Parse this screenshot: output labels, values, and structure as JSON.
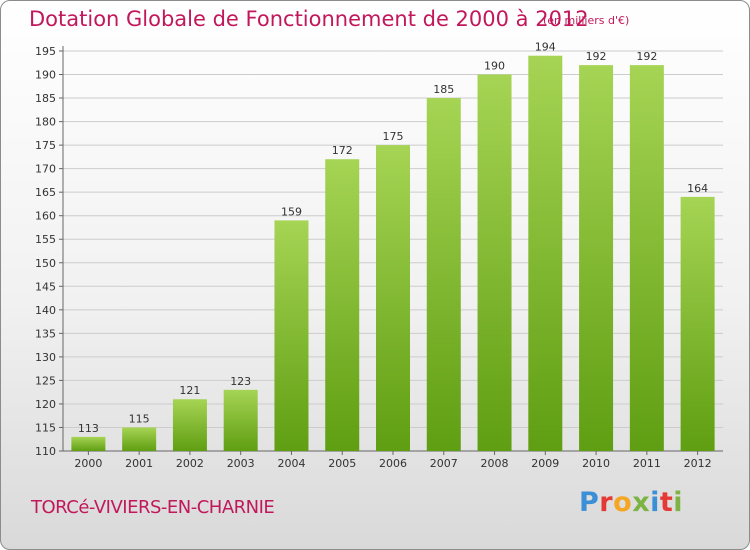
{
  "header": {
    "title": "Dotation Globale de Fonctionnement de 2000 à 2012",
    "unit": "(en milliers d'€)"
  },
  "footer": {
    "commune": "TORCé-VIVIERS-EN-CHARNIE",
    "brand_logo": "Proxiti"
  },
  "colors": {
    "title": "#c2185b",
    "bar_light": "#a6d454",
    "bar_dark": "#5f9e12",
    "grid": "#cccccc"
  },
  "chart_data": {
    "type": "bar",
    "categories": [
      "2000",
      "2001",
      "2002",
      "2003",
      "2004",
      "2005",
      "2006",
      "2007",
      "2008",
      "2009",
      "2010",
      "2011",
      "2012"
    ],
    "values": [
      113,
      115,
      121,
      123,
      159,
      172,
      175,
      185,
      190,
      194,
      192,
      192,
      164
    ],
    "ylim": [
      110,
      195
    ],
    "yticks": [
      110,
      115,
      120,
      125,
      130,
      135,
      140,
      145,
      150,
      155,
      160,
      165,
      170,
      175,
      180,
      185,
      190,
      195
    ],
    "grid": true,
    "xlabel": "",
    "ylabel": ""
  }
}
